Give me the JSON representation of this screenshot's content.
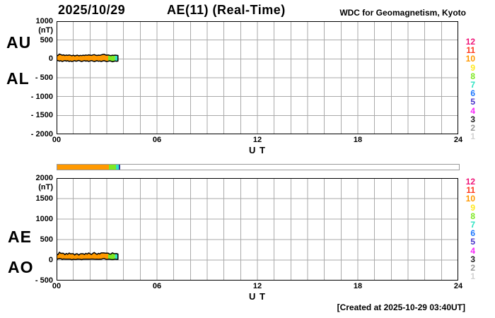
{
  "header": {
    "date": "2025/10/29",
    "title": "AE(11) (Real-Time)",
    "source": "WDC for Geomagnetism, Kyoto"
  },
  "footer": {
    "created": "[Created at 2025-10-29 03:40UT]"
  },
  "legend": {
    "items": [
      {
        "label": "12",
        "color": "#F01478"
      },
      {
        "label": "11",
        "color": "#FF3A1E"
      },
      {
        "label": "10",
        "color": "#FF9900"
      },
      {
        "label": "9",
        "color": "#FFE81E"
      },
      {
        "label": "8",
        "color": "#7FE823"
      },
      {
        "label": "7",
        "color": "#2EE3C3"
      },
      {
        "label": "6",
        "color": "#1E78FF"
      },
      {
        "label": "5",
        "color": "#4632C8"
      },
      {
        "label": "4",
        "color": "#FA28FA"
      },
      {
        "label": "3",
        "color": "#1E1E1E"
      },
      {
        "label": "2",
        "color": "#999999"
      },
      {
        "label": "1",
        "color": "#D2D2D2"
      }
    ]
  },
  "availability_bar": {
    "total_hours": 24,
    "border_color": "#999999",
    "segments": [
      {
        "start_h": 0,
        "end_h": 3.083,
        "color": "#FF9900"
      },
      {
        "start_h": 3.083,
        "end_h": 3.5,
        "color": "#7FE823"
      },
      {
        "start_h": 3.5,
        "end_h": 3.667,
        "color": "#2EE3C3"
      },
      {
        "start_h": 3.667,
        "end_h": 3.75,
        "color": "#3C3C99"
      }
    ]
  },
  "chart_data": [
    {
      "name": "AU-AL",
      "type": "area",
      "xlabel": "U T",
      "ylabel_unit": "(nT)",
      "xlim": [
        0,
        24
      ],
      "ylim": [
        -2000,
        1000
      ],
      "x_grid_step": 1,
      "grid_color": "#AAAAAA",
      "frame_color": "#000000",
      "outline_color": "#000000",
      "yticks": [
        {
          "v": 1000,
          "label": "1000"
        },
        {
          "v": 500,
          "label": "500"
        },
        {
          "v": 0,
          "label": "0"
        },
        {
          "v": -500,
          "label": "- 500"
        },
        {
          "v": -1000,
          "label": "- 1000"
        },
        {
          "v": -1500,
          "label": "- 1500"
        },
        {
          "v": -2000,
          "label": "- 2000"
        }
      ],
      "xticks": [
        {
          "v": 0,
          "label": "00"
        },
        {
          "v": 6,
          "label": "06"
        },
        {
          "v": 12,
          "label": "12"
        },
        {
          "v": 18,
          "label": "18"
        },
        {
          "v": 24,
          "label": "24"
        }
      ],
      "x": [
        0,
        0.083,
        0.167,
        0.25,
        0.333,
        0.417,
        0.5,
        0.583,
        0.667,
        0.75,
        0.833,
        0.917,
        1,
        1.083,
        1.167,
        1.25,
        1.333,
        1.417,
        1.5,
        1.583,
        1.667,
        1.75,
        1.833,
        1.917,
        2,
        2.083,
        2.167,
        2.25,
        2.333,
        2.417,
        2.5,
        2.583,
        2.667,
        2.75,
        2.833,
        2.917,
        3,
        3.083,
        3.167,
        3.25,
        3.333,
        3.417,
        3.5,
        3.583,
        3.667
      ],
      "series": [
        {
          "name": "AU",
          "values": [
            75,
            95,
            130,
            115,
            98,
            108,
            88,
            102,
            92,
            106,
            95,
            84,
            98,
            79,
            90,
            100,
            82,
            95,
            87,
            98,
            90,
            103,
            95,
            108,
            100,
            92,
            106,
            114,
            98,
            90,
            100,
            95,
            106,
            117,
            125,
            108,
            98,
            106,
            95,
            87,
            98,
            92,
            100,
            95,
            90
          ]
        },
        {
          "name": "AL",
          "values": [
            -55,
            -40,
            -62,
            -48,
            -68,
            -55,
            -44,
            -60,
            -49,
            -66,
            -55,
            -71,
            -57,
            -46,
            -63,
            -52,
            -40,
            -57,
            -68,
            -55,
            -46,
            -60,
            -52,
            -66,
            -55,
            -44,
            -57,
            -71,
            -60,
            -49,
            -63,
            -55,
            -68,
            -57,
            -49,
            -60,
            -71,
            -63,
            -52,
            -60,
            -77,
            -66,
            -55,
            -63,
            -57
          ]
        }
      ],
      "segments": [
        {
          "start": 0,
          "end": 3.083,
          "color": "#FF9900"
        },
        {
          "start": 3.083,
          "end": 3.5,
          "color": "#7FE823"
        },
        {
          "start": 3.5,
          "end": 3.667,
          "color": "#2EE3C3"
        }
      ]
    },
    {
      "name": "AE-AO",
      "type": "area",
      "xlabel": "U T",
      "ylabel_unit": "(nT)",
      "xlim": [
        0,
        24
      ],
      "ylim": [
        -500,
        2000
      ],
      "x_grid_step": 1,
      "grid_color": "#AAAAAA",
      "frame_color": "#000000",
      "outline_color": "#000000",
      "yticks": [
        {
          "v": 2000,
          "label": "2000"
        },
        {
          "v": 1500,
          "label": "1500"
        },
        {
          "v": 1000,
          "label": "1000"
        },
        {
          "v": 500,
          "label": "500"
        },
        {
          "v": 0,
          "label": "0"
        },
        {
          "v": -500,
          "label": "- 500"
        }
      ],
      "xticks": [
        {
          "v": 0,
          "label": "00"
        },
        {
          "v": 6,
          "label": "06"
        },
        {
          "v": 12,
          "label": "12"
        },
        {
          "v": 18,
          "label": "18"
        },
        {
          "v": 24,
          "label": "24"
        }
      ],
      "x": [
        0,
        0.083,
        0.167,
        0.25,
        0.333,
        0.417,
        0.5,
        0.583,
        0.667,
        0.75,
        0.833,
        0.917,
        1,
        1.083,
        1.167,
        1.25,
        1.333,
        1.417,
        1.5,
        1.583,
        1.667,
        1.75,
        1.833,
        1.917,
        2,
        2.083,
        2.167,
        2.25,
        2.333,
        2.417,
        2.5,
        2.583,
        2.667,
        2.75,
        2.833,
        2.917,
        3,
        3.083,
        3.167,
        3.25,
        3.333,
        3.417,
        3.5,
        3.583,
        3.667
      ],
      "series": [
        {
          "name": "AE",
          "values": [
            130,
            135,
            192,
            163,
            166,
            163,
            132,
            162,
            141,
            172,
            150,
            155,
            155,
            125,
            153,
            152,
            122,
            152,
            155,
            153,
            136,
            163,
            147,
            174,
            155,
            136,
            163,
            185,
            158,
            139,
            163,
            150,
            174,
            174,
            174,
            168,
            169,
            169,
            147,
            147,
            175,
            158,
            155,
            158,
            147
          ]
        },
        {
          "name": "AO",
          "values": [
            10,
            27,
            34,
            33,
            15,
            26,
            22,
            21,
            21,
            20,
            20,
            6,
            20,
            16,
            13,
            24,
            21,
            19,
            9,
            21,
            22,
            21,
            21,
            21,
            22,
            24,
            24,
            21,
            19,
            20,
            18,
            20,
            19,
            30,
            38,
            24,
            13,
            21,
            21,
            13,
            10,
            13,
            22,
            16,
            16
          ]
        }
      ],
      "segments": [
        {
          "start": 0,
          "end": 3.083,
          "color": "#FF9900"
        },
        {
          "start": 3.083,
          "end": 3.5,
          "color": "#7FE823"
        },
        {
          "start": 3.5,
          "end": 3.667,
          "color": "#2EE3C3"
        }
      ]
    }
  ]
}
